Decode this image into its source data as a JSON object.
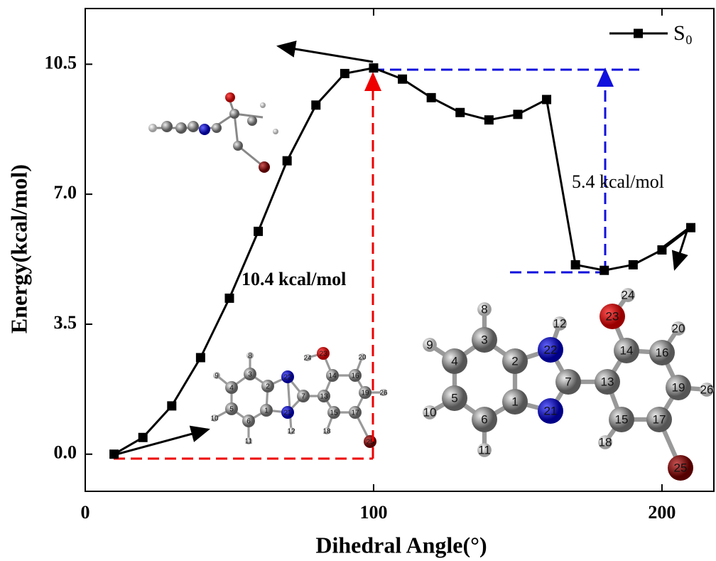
{
  "chart_data": {
    "type": "line",
    "x_label": "Dihedral Angle(°)",
    "y_label": "Energy(kcal/mol)",
    "x": [
      10,
      20,
      30,
      40,
      50,
      60,
      70,
      80,
      90,
      100,
      110,
      120,
      130,
      140,
      150,
      160,
      170,
      180,
      190,
      200,
      210
    ],
    "series": [
      {
        "name": "S₀",
        "color": "#000000",
        "values": [
          0,
          0.45,
          1.3,
          2.6,
          4.2,
          6.0,
          7.9,
          9.4,
          10.25,
          10.4,
          10.1,
          9.6,
          9.2,
          9.0,
          9.15,
          9.55,
          5.1,
          4.95,
          5.1,
          5.5,
          6.1
        ]
      }
    ],
    "xlim": [
      0,
      218
    ],
    "ylim": [
      -1,
      12
    ],
    "xticks": [
      0,
      100,
      200
    ],
    "yticks": [
      {
        "value": 0,
        "label": "0.0"
      },
      3.5,
      {
        "value": 7,
        "label": "7.0"
      },
      10.5
    ],
    "legend": "upper right",
    "annotations": [
      "10.4 kcal/mol",
      "5.4 kcal/mol"
    ],
    "atom_labels": [
      "1",
      "2",
      "3",
      "4",
      "5",
      "6",
      "7",
      "8",
      "9",
      "10",
      "11",
      "12",
      "13",
      "14",
      "15",
      "16",
      "17",
      "18",
      "19",
      "20",
      "21",
      "22",
      "23",
      "24",
      "25",
      "26"
    ]
  }
}
